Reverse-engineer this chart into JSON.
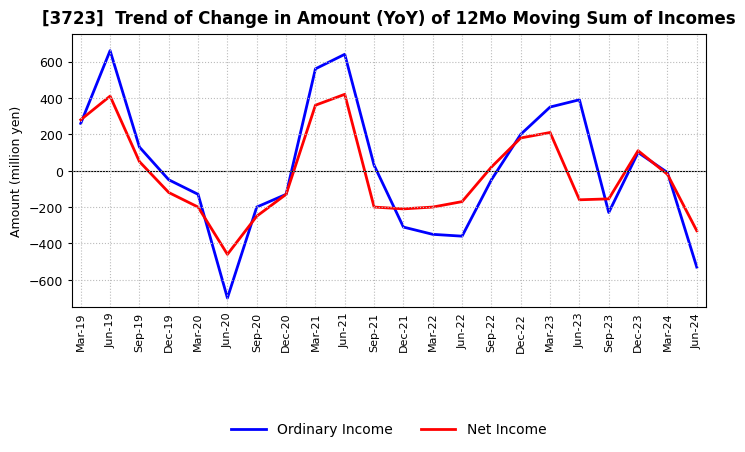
{
  "title": "[3723]  Trend of Change in Amount (YoY) of 12Mo Moving Sum of Incomes",
  "ylabel": "Amount (million yen)",
  "x_labels": [
    "Mar-19",
    "Jun-19",
    "Sep-19",
    "Dec-19",
    "Mar-20",
    "Jun-20",
    "Sep-20",
    "Dec-20",
    "Mar-21",
    "Jun-21",
    "Sep-21",
    "Dec-21",
    "Mar-22",
    "Jun-22",
    "Sep-22",
    "Dec-22",
    "Mar-23",
    "Jun-23",
    "Sep-23",
    "Dec-23",
    "Mar-24",
    "Jun-24"
  ],
  "ordinary_income": [
    260,
    660,
    130,
    -50,
    -130,
    -700,
    -200,
    -130,
    560,
    640,
    30,
    -310,
    -350,
    -360,
    -50,
    200,
    350,
    390,
    -230,
    100,
    -10,
    -530
  ],
  "net_income": [
    280,
    410,
    50,
    -120,
    -200,
    -460,
    -250,
    -130,
    360,
    420,
    -200,
    -210,
    -200,
    -170,
    20,
    180,
    210,
    -160,
    -155,
    110,
    -20,
    -330
  ],
  "ordinary_color": "#0000FF",
  "net_color": "#FF0000",
  "ylim": [
    -750,
    750
  ],
  "yticks": [
    -600,
    -400,
    -200,
    0,
    200,
    400,
    600
  ],
  "background_color": "#FFFFFF",
  "plot_bg_color": "#FFFFFF",
  "grid_color": "#BBBBBB",
  "title_fontsize": 12,
  "axis_fontsize": 9,
  "tick_fontsize": 9,
  "xtick_fontsize": 8,
  "legend_fontsize": 10
}
